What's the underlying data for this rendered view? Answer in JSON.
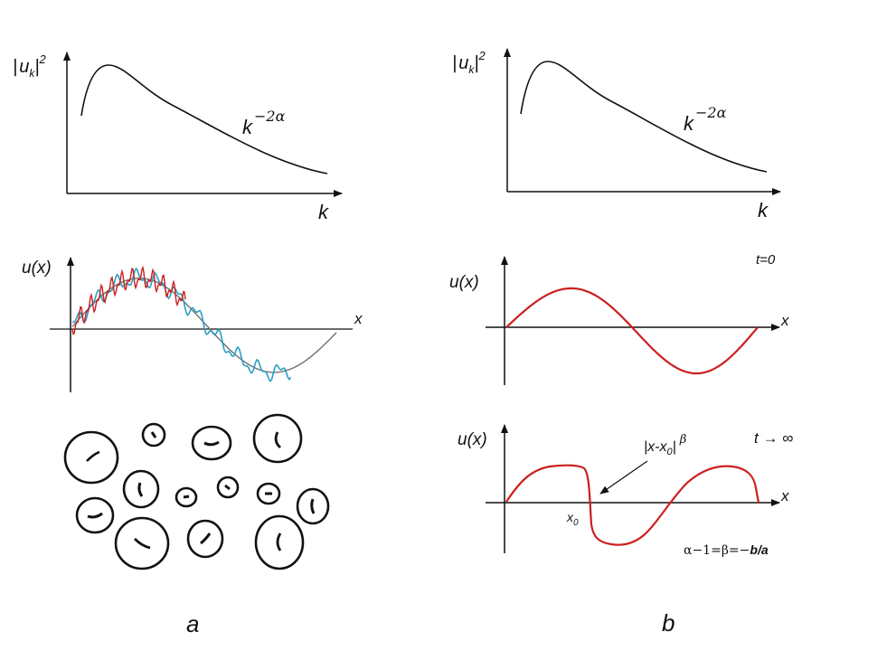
{
  "panels": {
    "a": {
      "letter": "a",
      "spectrum": {
        "ylabel_u": "u",
        "ylabel_sub": "k",
        "ylabel_sup": "2",
        "xlabel": "k",
        "law_base": "k",
        "law_exp": "−2α"
      },
      "profile": {
        "ylabel": "u(x)",
        "xlabel": "x"
      }
    },
    "b": {
      "letter": "b",
      "spectrum": {
        "ylabel_u": "u",
        "ylabel_sub": "k",
        "ylabel_sup": "2",
        "xlabel": "k",
        "law_base": "k",
        "law_exp": "−2α"
      },
      "profile_t0": {
        "ylabel": "u(x)",
        "xlabel": "x",
        "time": "t=0"
      },
      "profile_tinf": {
        "ylabel": "u(x)",
        "xlabel": "x",
        "time": "t → ∞",
        "x0_main": "x",
        "x0_sub": "0",
        "annot_pre": "|x-x",
        "annot_sub": "0",
        "annot_post": "|",
        "annot_exp": "β",
        "relation_pre": "α−1=β=−",
        "relation_post": "b/a"
      }
    }
  },
  "colors": {
    "ink": "#111111",
    "red": "#cc1f1f",
    "blue": "#2a9fc4",
    "gray": "#707070"
  }
}
